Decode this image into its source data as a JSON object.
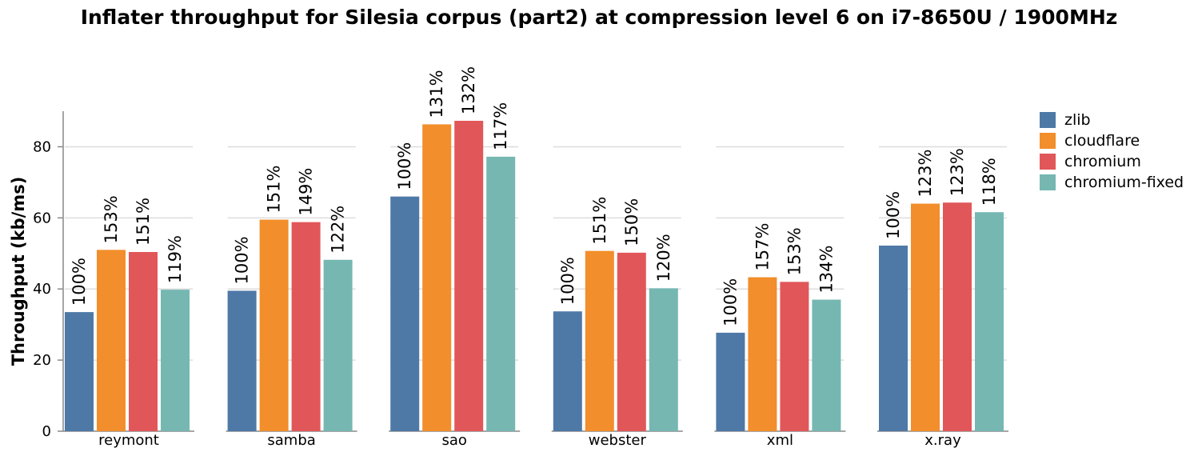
{
  "chart_data": {
    "type": "bar",
    "title": "Inflater throughput for Silesia corpus (part2) at compression level 6 on i7-8650U / 1900MHz",
    "ylabel": "Throughput (kb/ms)",
    "xlabel": "",
    "ylim": [
      0,
      90
    ],
    "yticks": [
      0,
      20,
      40,
      60,
      80
    ],
    "grid": true,
    "legend_position": "top-right",
    "categories": [
      "reymont",
      "samba",
      "sao",
      "webster",
      "xml",
      "x.ray"
    ],
    "series": [
      {
        "name": "zlib",
        "color": "#4e79a7",
        "values": [
          33.5,
          39.5,
          66.0,
          33.7,
          27.7,
          52.2
        ],
        "labels": [
          "100%",
          "100%",
          "100%",
          "100%",
          "100%",
          "100%"
        ]
      },
      {
        "name": "cloudflare",
        "color": "#f28e2b",
        "values": [
          51.0,
          59.5,
          86.3,
          50.7,
          43.3,
          64.0
        ],
        "labels": [
          "153%",
          "151%",
          "131%",
          "151%",
          "157%",
          "123%"
        ]
      },
      {
        "name": "chromium",
        "color": "#e15759",
        "values": [
          50.4,
          58.8,
          87.3,
          50.2,
          42.0,
          64.3
        ],
        "labels": [
          "151%",
          "149%",
          "132%",
          "150%",
          "153%",
          "123%"
        ]
      },
      {
        "name": "chromium-fixed",
        "color": "#76b7b2",
        "values": [
          39.8,
          48.2,
          77.2,
          40.2,
          37.0,
          61.6
        ],
        "labels": [
          "119%",
          "122%",
          "117%",
          "120%",
          "134%",
          "118%"
        ]
      }
    ]
  }
}
